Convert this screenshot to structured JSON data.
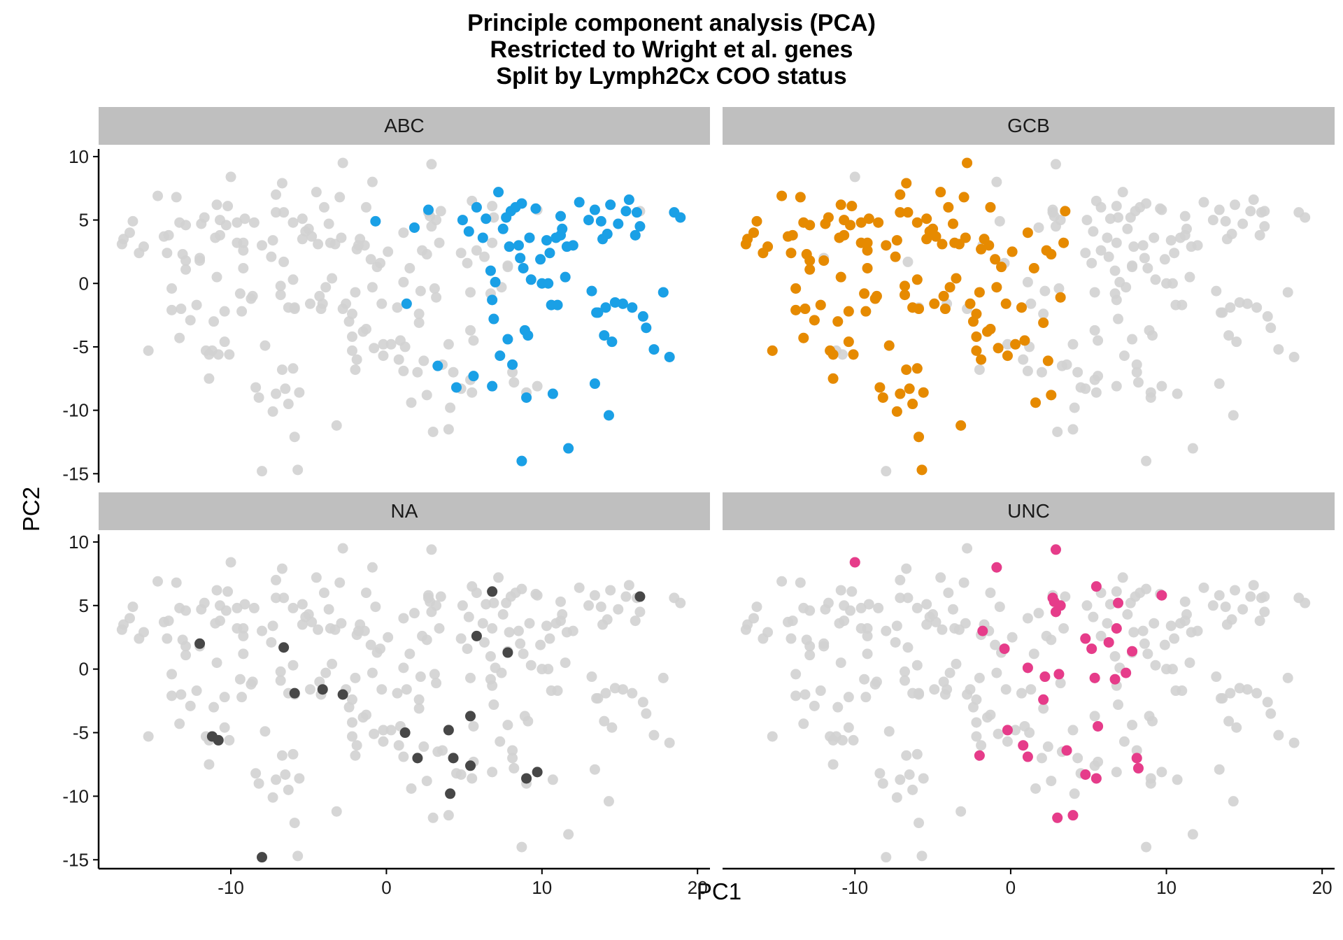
{
  "chart_data": {
    "type": "scatter",
    "title": [
      "Principle component analysis (PCA)",
      "Restricted to Wright et al. genes",
      "Split by Lymph2Cx COO status"
    ],
    "xlabel": "PC1",
    "ylabel": "PC2",
    "xlim": [
      -18.5,
      20.8
    ],
    "ylim": [
      -15.7,
      10.6
    ],
    "xticks": [
      -10,
      0,
      10,
      20
    ],
    "yticks": [
      10,
      5,
      0,
      -5,
      -10,
      -15
    ],
    "grid": false,
    "background_color": "#d2d2d2",
    "facets": [
      {
        "label": "ABC",
        "color": "#1aa0e6",
        "points": [
          [
            -0.7,
            4.9
          ],
          [
            1.8,
            4.4
          ],
          [
            2.7,
            5.8
          ],
          [
            1.3,
            -1.6
          ],
          [
            3.3,
            -6.5
          ],
          [
            4.5,
            -8.2
          ],
          [
            4.9,
            5.0
          ],
          [
            5.3,
            4.1
          ],
          [
            5.6,
            -7.3
          ],
          [
            5.8,
            6.0
          ],
          [
            6.2,
            3.6
          ],
          [
            6.4,
            5.1
          ],
          [
            6.7,
            1.0
          ],
          [
            6.8,
            -1.3
          ],
          [
            6.9,
            -2.8
          ],
          [
            6.8,
            -8.1
          ],
          [
            7.2,
            7.2
          ],
          [
            7.0,
            0.1
          ],
          [
            7.3,
            -5.7
          ],
          [
            7.5,
            4.3
          ],
          [
            7.7,
            5.2
          ],
          [
            7.9,
            2.9
          ],
          [
            8.0,
            5.7
          ],
          [
            7.8,
            -4.4
          ],
          [
            8.1,
            -6.4
          ],
          [
            8.3,
            6.0
          ],
          [
            8.5,
            3.0
          ],
          [
            8.6,
            2.0
          ],
          [
            8.8,
            1.2
          ],
          [
            8.9,
            -3.7
          ],
          [
            8.7,
            -14.0
          ],
          [
            8.7,
            6.3
          ],
          [
            9.1,
            -4.1
          ],
          [
            9.0,
            -9.0
          ],
          [
            9.2,
            3.6
          ],
          [
            9.3,
            0.3
          ],
          [
            9.6,
            5.9
          ],
          [
            9.9,
            1.9
          ],
          [
            10.0,
            0.0
          ],
          [
            10.3,
            3.4
          ],
          [
            10.4,
            0.0
          ],
          [
            10.5,
            2.4
          ],
          [
            10.6,
            -1.7
          ],
          [
            10.7,
            -8.7
          ],
          [
            10.9,
            3.6
          ],
          [
            11.0,
            -1.7
          ],
          [
            11.2,
            3.8
          ],
          [
            11.3,
            4.3
          ],
          [
            11.2,
            5.3
          ],
          [
            11.5,
            0.5
          ],
          [
            11.6,
            2.9
          ],
          [
            11.7,
            -13.0
          ],
          [
            12.0,
            3.0
          ],
          [
            12.4,
            6.4
          ],
          [
            13.0,
            5.0
          ],
          [
            13.2,
            -0.6
          ],
          [
            13.4,
            5.8
          ],
          [
            13.5,
            -2.3
          ],
          [
            13.4,
            -7.9
          ],
          [
            13.6,
            -2.3
          ],
          [
            13.8,
            4.9
          ],
          [
            13.9,
            3.5
          ],
          [
            14.1,
            -1.9
          ],
          [
            14.0,
            -4.1
          ],
          [
            14.2,
            3.9
          ],
          [
            14.3,
            -10.4
          ],
          [
            14.4,
            6.2
          ],
          [
            14.5,
            -4.6
          ],
          [
            14.7,
            -1.5
          ],
          [
            14.9,
            4.7
          ],
          [
            15.2,
            -1.6
          ],
          [
            15.4,
            5.7
          ],
          [
            15.6,
            6.6
          ],
          [
            15.8,
            -1.9
          ],
          [
            16.1,
            5.6
          ],
          [
            16.3,
            4.5
          ],
          [
            16.5,
            -2.6
          ],
          [
            16.7,
            -3.5
          ],
          [
            17.2,
            -5.2
          ],
          [
            17.8,
            -0.7
          ],
          [
            18.2,
            -5.8
          ],
          [
            18.5,
            5.6
          ],
          [
            18.9,
            5.2
          ],
          [
            16.0,
            3.8
          ]
        ]
      },
      {
        "label": "GCB",
        "color": "#e68a00",
        "points": [
          [
            -17.0,
            3.1
          ],
          [
            -16.9,
            3.5
          ],
          [
            -16.5,
            4.0
          ],
          [
            -16.3,
            4.9
          ],
          [
            -15.6,
            2.9
          ],
          [
            -15.9,
            2.4
          ],
          [
            -15.3,
            -5.3
          ],
          [
            -14.7,
            6.9
          ],
          [
            -14.1,
            2.4
          ],
          [
            -14.0,
            3.8
          ],
          [
            -13.8,
            -2.1
          ],
          [
            -13.8,
            -0.4
          ],
          [
            -13.5,
            6.8
          ],
          [
            -13.3,
            4.8
          ],
          [
            -13.3,
            -4.3
          ],
          [
            -13.2,
            -2.0
          ],
          [
            -13.1,
            2.3
          ],
          [
            -12.9,
            1.8
          ],
          [
            -12.9,
            1.1
          ],
          [
            -12.6,
            -2.9
          ],
          [
            -12.2,
            -1.7
          ],
          [
            -12.0,
            1.8
          ],
          [
            -11.9,
            4.7
          ],
          [
            -11.7,
            5.2
          ],
          [
            -11.6,
            -5.3
          ],
          [
            -11.4,
            -7.5
          ],
          [
            -11.4,
            -5.6
          ],
          [
            -11.1,
            -3.0
          ],
          [
            -10.9,
            0.5
          ],
          [
            -10.9,
            6.2
          ],
          [
            -10.7,
            5.0
          ],
          [
            -10.7,
            3.8
          ],
          [
            -10.4,
            -2.2
          ],
          [
            -10.4,
            -4.6
          ],
          [
            -10.3,
            4.6
          ],
          [
            -10.2,
            6.1
          ],
          [
            -10.1,
            -5.6
          ],
          [
            -9.6,
            4.8
          ],
          [
            -9.6,
            3.2
          ],
          [
            -9.4,
            -0.8
          ],
          [
            -9.2,
            1.2
          ],
          [
            -9.2,
            2.6
          ],
          [
            -9.1,
            5.1
          ],
          [
            -9.2,
            3.2
          ],
          [
            -8.6,
            -1.0
          ],
          [
            -8.5,
            4.8
          ],
          [
            -8.4,
            -8.2
          ],
          [
            -8.2,
            -9.0
          ],
          [
            -7.8,
            -4.9
          ],
          [
            -7.4,
            2.1
          ],
          [
            -7.3,
            3.4
          ],
          [
            -7.3,
            -10.1
          ],
          [
            -7.1,
            7.0
          ],
          [
            -7.1,
            5.6
          ],
          [
            -7.1,
            -8.7
          ],
          [
            -6.8,
            -0.9
          ],
          [
            -6.7,
            7.9
          ],
          [
            -6.7,
            -6.8
          ],
          [
            -6.6,
            5.6
          ],
          [
            -6.5,
            -8.3
          ],
          [
            -6.3,
            -1.9
          ],
          [
            -6.3,
            -9.5
          ],
          [
            -6.0,
            4.8
          ],
          [
            -6.0,
            0.3
          ],
          [
            -6.0,
            -6.7
          ],
          [
            -5.9,
            -2.0
          ],
          [
            -5.9,
            -12.1
          ],
          [
            -5.7,
            -14.7
          ],
          [
            -5.6,
            -8.6
          ],
          [
            -5.4,
            3.5
          ],
          [
            -5.4,
            5.1
          ],
          [
            -5.2,
            4.1
          ],
          [
            -5.0,
            4.3
          ],
          [
            -4.8,
            3.7
          ],
          [
            -4.5,
            7.2
          ],
          [
            -4.4,
            3.1
          ],
          [
            -4.3,
            -1.0
          ],
          [
            -4.2,
            -2.0
          ],
          [
            -4.0,
            6.0
          ],
          [
            -3.9,
            -0.3
          ],
          [
            -3.7,
            4.7
          ],
          [
            -3.6,
            3.2
          ],
          [
            -3.3,
            3.1
          ],
          [
            -3.2,
            -11.2
          ],
          [
            -3.0,
            6.8
          ],
          [
            -2.9,
            3.6
          ],
          [
            -2.8,
            9.5
          ],
          [
            -2.6,
            -1.6
          ],
          [
            -2.4,
            -3.0
          ],
          [
            -2.2,
            -2.4
          ],
          [
            -2.2,
            -4.2
          ],
          [
            -2.2,
            -5.3
          ],
          [
            -2.0,
            -0.7
          ],
          [
            -1.9,
            2.7
          ],
          [
            -1.9,
            -6.0
          ],
          [
            -1.7,
            3.5
          ],
          [
            -1.5,
            -3.8
          ],
          [
            -1.4,
            3.0
          ],
          [
            -1.3,
            6.0
          ],
          [
            -1.3,
            -3.6
          ],
          [
            -1.0,
            1.9
          ],
          [
            -0.9,
            -0.3
          ],
          [
            -0.8,
            -5.1
          ],
          [
            -0.6,
            1.3
          ],
          [
            -0.3,
            -1.6
          ],
          [
            -0.2,
            -5.7
          ],
          [
            0.1,
            2.5
          ],
          [
            0.3,
            -4.8
          ],
          [
            0.7,
            -1.9
          ],
          [
            0.9,
            -4.5
          ],
          [
            1.5,
            1.2
          ],
          [
            1.6,
            -9.4
          ],
          [
            2.6,
            2.3
          ],
          [
            2.3,
            2.6
          ],
          [
            2.1,
            -3.1
          ],
          [
            2.4,
            -6.1
          ],
          [
            2.6,
            -8.8
          ],
          [
            3.2,
            -1.1
          ],
          [
            3.4,
            3.2
          ],
          [
            3.5,
            5.7
          ],
          [
            -12.9,
            4.6
          ],
          [
            -14.3,
            3.7
          ],
          [
            -11.0,
            3.6
          ],
          [
            -8.7,
            -1.2
          ],
          [
            -4.9,
            -1.6
          ],
          [
            -8.0,
            3.0
          ],
          [
            -9.3,
            -2.2
          ],
          [
            -3.5,
            0.4
          ],
          [
            -6.8,
            -0.2
          ],
          [
            1.1,
            4.0
          ]
        ]
      },
      {
        "label": "NA",
        "color": "#474747",
        "points": [
          [
            -12.0,
            2.0
          ],
          [
            -11.2,
            -5.3
          ],
          [
            -10.8,
            -5.6
          ],
          [
            -6.6,
            1.7
          ],
          [
            -5.9,
            -1.9
          ],
          [
            -4.1,
            -1.6
          ],
          [
            -2.8,
            -2.0
          ],
          [
            -8.0,
            -14.8
          ],
          [
            1.2,
            -5.0
          ],
          [
            2.0,
            -7.0
          ],
          [
            4.0,
            -4.8
          ],
          [
            4.3,
            -7.0
          ],
          [
            4.1,
            -9.8
          ],
          [
            5.4,
            -3.7
          ],
          [
            5.4,
            -7.6
          ],
          [
            5.8,
            2.6
          ],
          [
            6.8,
            6.1
          ],
          [
            7.8,
            1.3
          ],
          [
            9.0,
            -8.6
          ],
          [
            9.7,
            -8.1
          ],
          [
            16.3,
            5.7
          ]
        ]
      },
      {
        "label": "UNC",
        "color": "#e63c8a",
        "points": [
          [
            -10.0,
            8.4
          ],
          [
            -1.8,
            3.0
          ],
          [
            -0.9,
            8.0
          ],
          [
            -0.4,
            1.6
          ],
          [
            -0.2,
            -4.8
          ],
          [
            -2.0,
            -6.8
          ],
          [
            0.8,
            -6.0
          ],
          [
            1.1,
            -6.9
          ],
          [
            1.1,
            0.1
          ],
          [
            2.1,
            -2.4
          ],
          [
            2.2,
            -0.6
          ],
          [
            2.7,
            5.6
          ],
          [
            2.8,
            5.3
          ],
          [
            2.9,
            9.4
          ],
          [
            2.9,
            4.5
          ],
          [
            3.2,
            5.0
          ],
          [
            3.1,
            -0.4
          ],
          [
            3.6,
            -6.4
          ],
          [
            3.0,
            -11.7
          ],
          [
            4.0,
            -11.5
          ],
          [
            4.8,
            2.4
          ],
          [
            4.8,
            -8.3
          ],
          [
            5.2,
            1.6
          ],
          [
            5.4,
            -0.7
          ],
          [
            5.6,
            -4.5
          ],
          [
            5.5,
            6.5
          ],
          [
            5.5,
            -8.6
          ],
          [
            6.3,
            2.1
          ],
          [
            6.7,
            -0.8
          ],
          [
            6.8,
            3.2
          ],
          [
            6.9,
            5.2
          ],
          [
            7.4,
            -0.3
          ],
          [
            7.8,
            1.4
          ],
          [
            8.1,
            -7.0
          ],
          [
            8.2,
            -7.8
          ],
          [
            9.7,
            5.8
          ]
        ]
      }
    ]
  }
}
